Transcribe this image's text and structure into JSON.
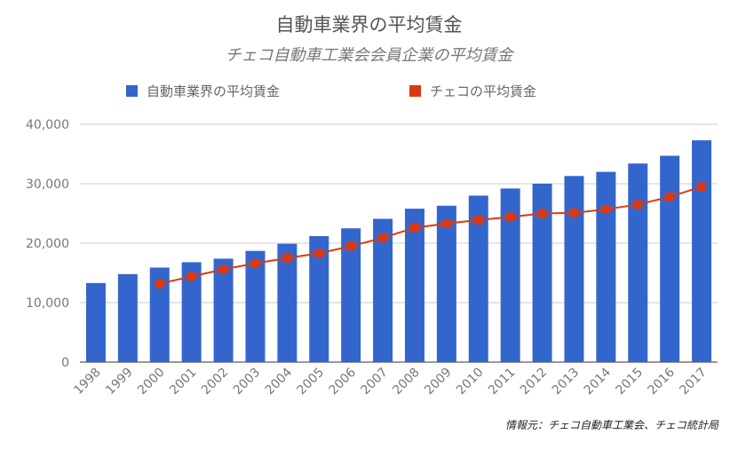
{
  "chart_data": {
    "type": "bar",
    "title": "自動車業界の平均賃金",
    "subtitle": "チェコ自動車工業会会員企業の平均賃金",
    "categories": [
      "1998",
      "1999",
      "2000",
      "2001",
      "2002",
      "2003",
      "2004",
      "2005",
      "2006",
      "2007",
      "2008",
      "2009",
      "2010",
      "2011",
      "2012",
      "2013",
      "2014",
      "2015",
      "2016",
      "2017"
    ],
    "ylim": [
      0,
      40000
    ],
    "yticks": [
      0,
      10000,
      20000,
      30000,
      40000
    ],
    "ytick_labels": [
      "0",
      "10,000",
      "20,000",
      "30,000",
      "40,000"
    ],
    "grid": true,
    "legend_position": "top",
    "series": [
      {
        "name": "自動車業界の平均賃金",
        "type": "bar",
        "color": "#3366cc",
        "values": [
          13300,
          14800,
          15900,
          16800,
          17400,
          18700,
          19900,
          21200,
          22500,
          24100,
          25800,
          26300,
          28000,
          29200,
          30000,
          31300,
          32000,
          33400,
          34700,
          37300
        ]
      },
      {
        "name": "チェコの平均賃金",
        "type": "line",
        "color": "#dc3912",
        "values": [
          null,
          null,
          13200,
          14400,
          15600,
          16600,
          17500,
          18300,
          19500,
          20900,
          22600,
          23300,
          23900,
          24400,
          25000,
          25100,
          25700,
          26500,
          27800,
          29500
        ]
      }
    ]
  },
  "source_note": "情報元：チェコ自動車工業会、チェコ統計局"
}
